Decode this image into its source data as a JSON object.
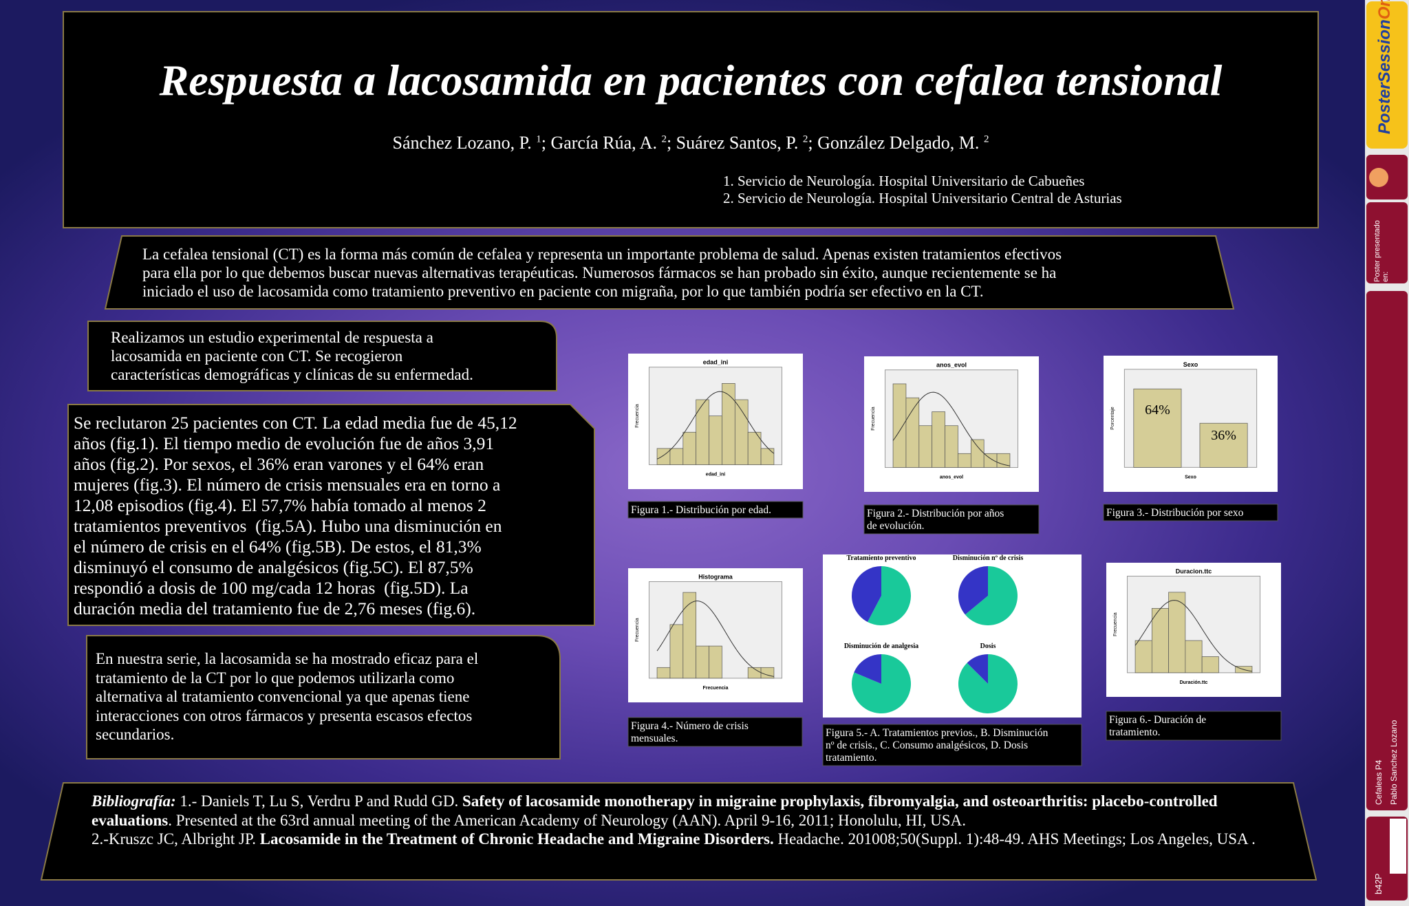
{
  "header": {
    "title": "Respuesta a lacosamida en pacientes con cefalea tensional",
    "authors": [
      {
        "name": "Sánchez Lozano, P. ",
        "sup": "1"
      },
      {
        "name": "; García Rúa, A. ",
        "sup": "2"
      },
      {
        "name": "; Suárez Santos, P. ",
        "sup": "2"
      },
      {
        "name": "; González Delgado, M. ",
        "sup": "2"
      }
    ],
    "affiliations": [
      "1. Servicio de Neurología. Hospital Universitario de Cabueñes",
      "2. Servicio de Neurología. Hospital Universitario Central de Asturias"
    ]
  },
  "intro": {
    "lines": [
      "La cefalea tensional (CT) es la forma más común de cefalea y representa un importante problema de salud. Apenas existen tratamientos efectivos",
      "para ella por lo que debemos buscar nuevas alternativas terapéuticas. Numerosos fármacos se han probado sin éxito, aunque recientemente se ha",
      "iniciado el uso de lacosamida como tratamiento preventivo en paciente con migraña, por lo que también podría ser efectivo en la CT."
    ]
  },
  "methods": {
    "lines": [
      "Realizamos un estudio experimental de respuesta a",
      "lacosamida en paciente con CT. Se recogieron",
      "características demográficas y clínicas de su enfermedad."
    ]
  },
  "results": {
    "lines": [
      "Se reclutaron 25 pacientes con CT. La edad media fue de 45,12",
      "años (fig.1). El tiempo medio de evolución fue de años 3,91",
      "años (fig.2). Por sexos, el 36% eran varones y el 64% eran",
      "mujeres (fig.3). El número de crisis mensuales era en torno a",
      "12,08 episodios (fig.4). El 57,7% había tomado al menos 2",
      "tratamientos preventivos  (fig.5A). Hubo una disminución en",
      "el número de crisis en el 64% (fig.5B). De estos, el 81,3%",
      "disminuyó el consumo de analgésicos (fig.5C). El 87,5%",
      "respondió a dosis de 100 mg/cada 12 horas  (fig.5D). La",
      "duración media del tratamiento fue de 2,76 meses (fig.6)."
    ]
  },
  "conclusion": {
    "lines": [
      "En nuestra serie, la lacosamida se ha mostrado eficaz para el",
      "tratamiento de la CT por lo que podemos utilizarla como",
      "alternativa al tratamiento convencional ya que apenas tiene",
      "interacciones con otros fármacos y presenta escasos efectos",
      "secundarios."
    ]
  },
  "figures": [
    {
      "type": "histogram",
      "title": "edad_ini",
      "x_label": "edad_ini",
      "y_label": "Frecuencia",
      "counts": [
        1,
        1,
        2,
        4,
        3,
        5,
        4,
        2,
        1
      ],
      "ylim": [
        0,
        6
      ],
      "color": "#d5cd97",
      "caption_lines": [
        "Figura 1.- Distribución por edad."
      ]
    },
    {
      "type": "histogram",
      "title": "anos_evol",
      "x_label": "anos_evol",
      "y_label": "Frecuencia",
      "counts": [
        6,
        5,
        3,
        4,
        3,
        1,
        2,
        1,
        1
      ],
      "ylim": [
        0,
        7
      ],
      "color": "#d5cd97",
      "caption_lines": [
        "Figura 2.- Distribución por años",
        "de evolución."
      ]
    },
    {
      "type": "bar",
      "title": "Sexo",
      "x_label": "Sexo",
      "y_label": "Porcentaje",
      "values": [
        64,
        36
      ],
      "value_labels": [
        "64%",
        "36%"
      ],
      "ylim": [
        0,
        80
      ],
      "color": "#d5cd97",
      "caption_lines": [
        "Figura 3.- Distribución por sexo"
      ]
    },
    {
      "type": "histogram",
      "title": "Histograma",
      "x_label": "Frecuencia",
      "y_label": "Frecuencia",
      "counts": [
        1,
        5,
        8,
        3,
        3,
        0,
        0,
        1,
        1
      ],
      "ylim": [
        0,
        9
      ],
      "color": "#d5cd97",
      "caption_lines": [
        "Figura 4.- Número de crisis",
        "mensuales."
      ]
    },
    {
      "type": "pie",
      "colors": [
        "#19c99a",
        "#3434c6"
      ],
      "pies": [
        {
          "title": "Tratamiento preventivo",
          "values": [
            57.7,
            42.3
          ]
        },
        {
          "title": "Disminución nº de crisis",
          "values": [
            64,
            36
          ]
        },
        {
          "title": "Disminución de analgesia",
          "values": [
            81.3,
            18.7
          ]
        },
        {
          "title": "Dosis",
          "values": [
            87.5,
            12.5
          ]
        }
      ],
      "caption_lines": [
        "Figura 5.- A. Tratamientos previos., B. Disminución",
        "nº de crisis., C. Consumo analgésicos, D. Dosis",
        "tratamiento."
      ]
    },
    {
      "type": "histogram",
      "title": "Duracion.ttc",
      "x_label": "Duración.ttc",
      "y_label": "Frecuencia",
      "counts": [
        2,
        4,
        5,
        2,
        1,
        0,
        0.4
      ],
      "ylim": [
        0,
        6
      ],
      "color": "#d5cd97",
      "caption_lines": [
        "Figura 6.- Duración de",
        "tratamiento."
      ]
    }
  ],
  "bibliography": {
    "label": "Bibliografía:",
    "refs": [
      {
        "prefix": " 1.- Daniels T, Lu S, Verdru P and Rudd GD. ",
        "title": "Safety of lacosamide monotherapy in migraine prophylaxis, fibromyalgia, and osteoarthritis: placebo-controlled evaluations",
        "suffix": ". Presented at the 63rd annual meeting of the American Academy of Neurology (AAN). April 9-16, 2011; Honolulu, HI, USA."
      },
      {
        "prefix": "2.-Kruszc JC, Albright JP. ",
        "title": "Lacosamide in the Treatment of Chronic Headache and Migraine Disorders.",
        "suffix": " Headache. 201008;50(Suppl. 1):48-49. AHS Meetings; Los Angeles, USA ."
      }
    ]
  },
  "sidebar": {
    "brand_1": "Poster",
    "brand_2": "Session",
    "brand_3": "Online",
    "presented": "Poster presentado en:",
    "session": "Cefaleas P4",
    "author": "Pablo Sanchez Lozano",
    "code": "b42P"
  }
}
